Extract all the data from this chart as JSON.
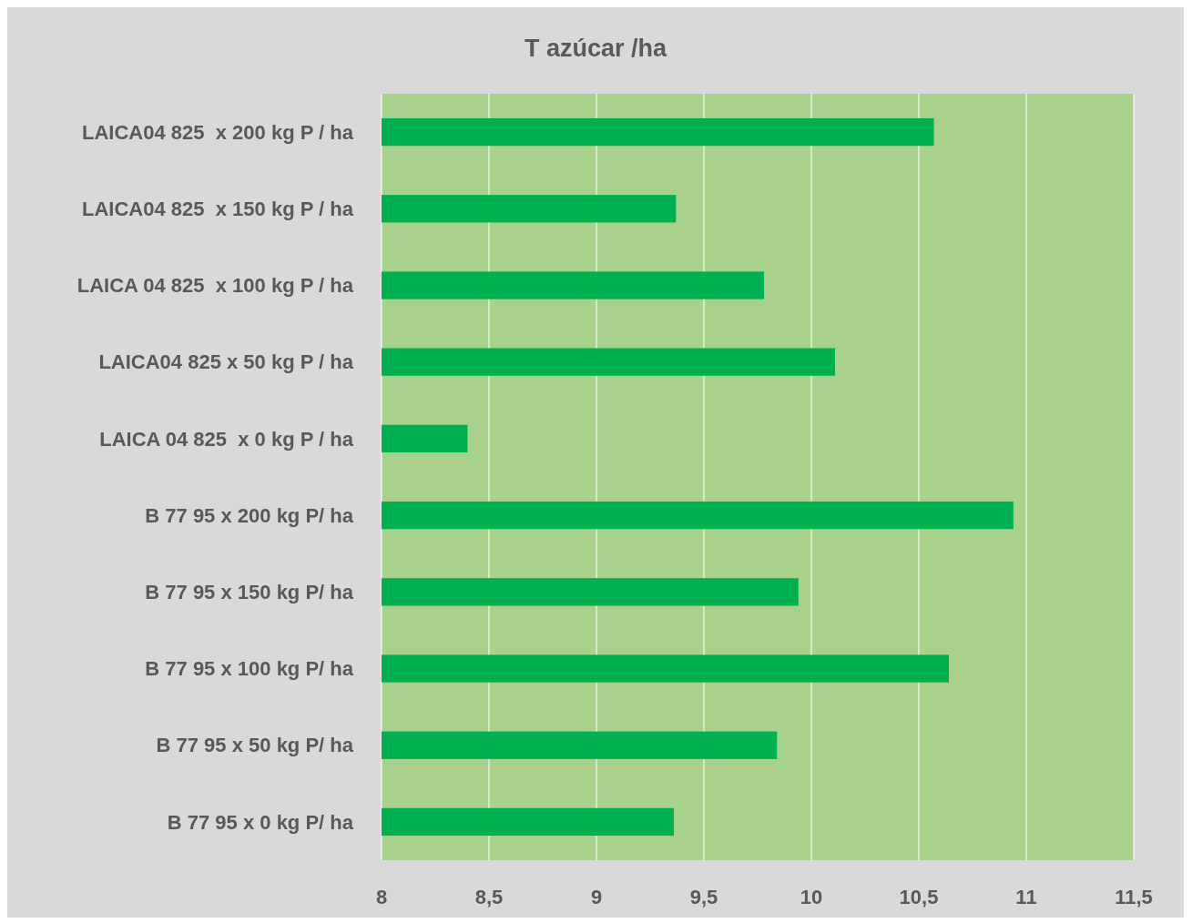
{
  "chart_data": {
    "type": "bar",
    "orientation": "horizontal",
    "title": "T azúcar /ha",
    "categories": [
      "LAICA04 825  x 200 kg P / ha",
      "LAICA04 825  x 150 kg P / ha",
      "LAICA 04 825  x 100 kg P / ha",
      "LAICA04 825 x 50 kg P / ha",
      "LAICA 04 825  x 0 kg P / ha",
      "B 77 95 x 200 kg P/ ha",
      "B 77 95 x 150 kg P/ ha",
      "B 77 95 x 100 kg P/ ha",
      "B 77 95 x 50 kg P/ ha",
      "B 77 95 x 0 kg P/ ha"
    ],
    "values": [
      10.57,
      9.37,
      9.78,
      10.11,
      8.4,
      10.94,
      9.94,
      10.64,
      9.84,
      9.36
    ],
    "color": "#00b050",
    "xlim": [
      8,
      11.5
    ],
    "xticks": [
      8,
      {
        "value": 8.5,
        "label": "8,5"
      },
      9,
      {
        "value": 9.5,
        "label": "9,5"
      },
      10,
      {
        "value": 10.5,
        "label": "10,5"
      },
      11,
      {
        "value": 11.5,
        "label": "11,5"
      }
    ],
    "grid": "x"
  }
}
